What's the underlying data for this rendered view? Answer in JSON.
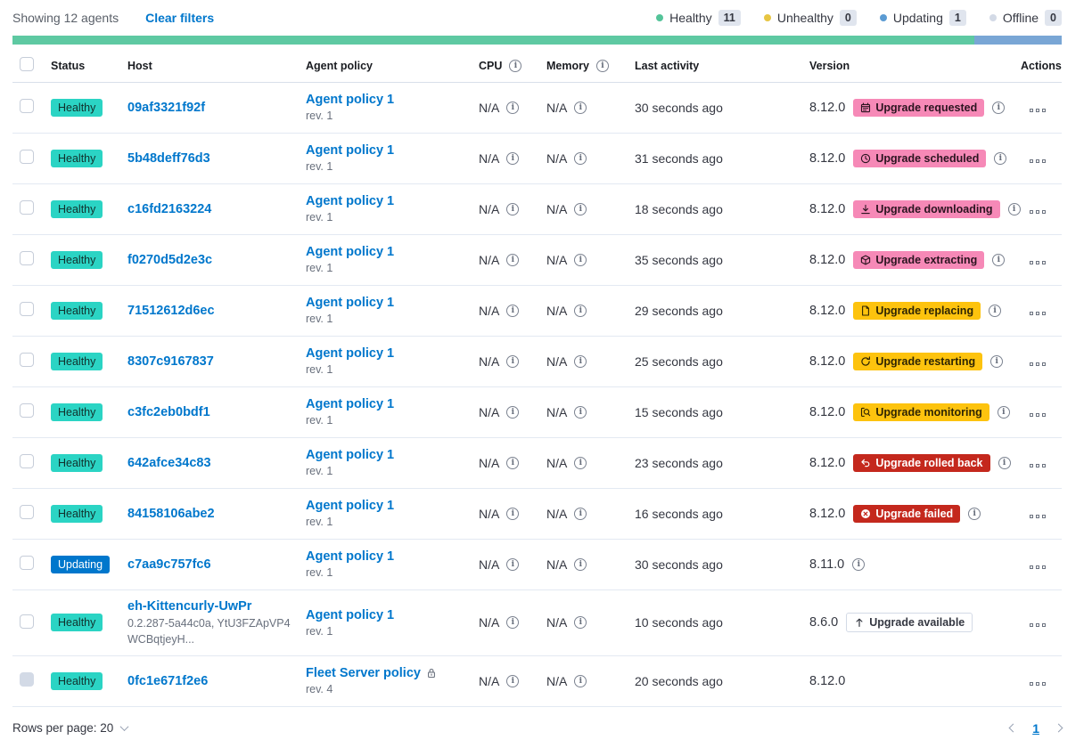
{
  "toolbar": {
    "showing_text": "Showing 12 agents",
    "clear_filters_label": "Clear filters",
    "legend": [
      {
        "label": "Healthy",
        "count": "11",
        "color": "#54C499"
      },
      {
        "label": "Unhealthy",
        "count": "0",
        "color": "#E7C542"
      },
      {
        "label": "Updating",
        "count": "1",
        "color": "#5B9BD3"
      },
      {
        "label": "Offline",
        "count": "0",
        "color": "#D3DAE6"
      }
    ]
  },
  "health_bar": {
    "segments": [
      {
        "status": "healthy",
        "color": "#5EC9A2",
        "fraction": 0.917
      },
      {
        "status": "updating",
        "color": "#79A6D5",
        "fraction": 0.083
      }
    ]
  },
  "table": {
    "headers": {
      "status": "Status",
      "host": "Host",
      "policy": "Agent policy",
      "cpu": "CPU",
      "memory": "Memory",
      "last_activity": "Last activity",
      "version": "Version",
      "actions": "Actions"
    },
    "rows": [
      {
        "status": "Healthy",
        "host": "09af3321f92f",
        "host_sub": "",
        "policy": "Agent policy 1",
        "policy_rev": "rev. 1",
        "policy_locked": false,
        "cpu": "N/A",
        "memory": "N/A",
        "last_activity": "30 seconds ago",
        "version": "8.12.0",
        "upgrade_badge": {
          "label": "Upgrade requested",
          "style": "accent",
          "icon": "calendar-icon"
        },
        "version_info": true,
        "checkbox_disabled": false
      },
      {
        "status": "Healthy",
        "host": "5b48deff76d3",
        "host_sub": "",
        "policy": "Agent policy 1",
        "policy_rev": "rev. 1",
        "policy_locked": false,
        "cpu": "N/A",
        "memory": "N/A",
        "last_activity": "31 seconds ago",
        "version": "8.12.0",
        "upgrade_badge": {
          "label": "Upgrade scheduled",
          "style": "accent",
          "icon": "clock-icon"
        },
        "version_info": true,
        "checkbox_disabled": false
      },
      {
        "status": "Healthy",
        "host": "c16fd2163224",
        "host_sub": "",
        "policy": "Agent policy 1",
        "policy_rev": "rev. 1",
        "policy_locked": false,
        "cpu": "N/A",
        "memory": "N/A",
        "last_activity": "18 seconds ago",
        "version": "8.12.0",
        "upgrade_badge": {
          "label": "Upgrade downloading",
          "style": "accent",
          "icon": "download-icon"
        },
        "version_info": true,
        "checkbox_disabled": false
      },
      {
        "status": "Healthy",
        "host": "f0270d5d2e3c",
        "host_sub": "",
        "policy": "Agent policy 1",
        "policy_rev": "rev. 1",
        "policy_locked": false,
        "cpu": "N/A",
        "memory": "N/A",
        "last_activity": "35 seconds ago",
        "version": "8.12.0",
        "upgrade_badge": {
          "label": "Upgrade extracting",
          "style": "accent",
          "icon": "package-icon"
        },
        "version_info": true,
        "checkbox_disabled": false
      },
      {
        "status": "Healthy",
        "host": "71512612d6ec",
        "host_sub": "",
        "policy": "Agent policy 1",
        "policy_rev": "rev. 1",
        "policy_locked": false,
        "cpu": "N/A",
        "memory": "N/A",
        "last_activity": "29 seconds ago",
        "version": "8.12.0",
        "upgrade_badge": {
          "label": "Upgrade replacing",
          "style": "warning",
          "icon": "document-icon"
        },
        "version_info": true,
        "checkbox_disabled": false
      },
      {
        "status": "Healthy",
        "host": "8307c9167837",
        "host_sub": "",
        "policy": "Agent policy 1",
        "policy_rev": "rev. 1",
        "policy_locked": false,
        "cpu": "N/A",
        "memory": "N/A",
        "last_activity": "25 seconds ago",
        "version": "8.12.0",
        "upgrade_badge": {
          "label": "Upgrade restarting",
          "style": "warning",
          "icon": "refresh-icon"
        },
        "version_info": true,
        "checkbox_disabled": false
      },
      {
        "status": "Healthy",
        "host": "c3fc2eb0bdf1",
        "host_sub": "",
        "policy": "Agent policy 1",
        "policy_rev": "rev. 1",
        "policy_locked": false,
        "cpu": "N/A",
        "memory": "N/A",
        "last_activity": "15 seconds ago",
        "version": "8.12.0",
        "upgrade_badge": {
          "label": "Upgrade monitoring",
          "style": "warning",
          "icon": "inspect-icon"
        },
        "version_info": true,
        "checkbox_disabled": false
      },
      {
        "status": "Healthy",
        "host": "642afce34c83",
        "host_sub": "",
        "policy": "Agent policy 1",
        "policy_rev": "rev. 1",
        "policy_locked": false,
        "cpu": "N/A",
        "memory": "N/A",
        "last_activity": "23 seconds ago",
        "version": "8.12.0",
        "upgrade_badge": {
          "label": "Upgrade rolled back",
          "style": "danger",
          "icon": "return-icon"
        },
        "version_info": true,
        "checkbox_disabled": false
      },
      {
        "status": "Healthy",
        "host": "84158106abe2",
        "host_sub": "",
        "policy": "Agent policy 1",
        "policy_rev": "rev. 1",
        "policy_locked": false,
        "cpu": "N/A",
        "memory": "N/A",
        "last_activity": "16 seconds ago",
        "version": "8.12.0",
        "upgrade_badge": {
          "label": "Upgrade failed",
          "style": "danger",
          "icon": "error-icon"
        },
        "version_info": true,
        "checkbox_disabled": false
      },
      {
        "status": "Updating",
        "host": "c7aa9c757fc6",
        "host_sub": "",
        "policy": "Agent policy 1",
        "policy_rev": "rev. 1",
        "policy_locked": false,
        "cpu": "N/A",
        "memory": "N/A",
        "last_activity": "30 seconds ago",
        "version": "8.11.0",
        "upgrade_badge": null,
        "version_info": true,
        "checkbox_disabled": false
      },
      {
        "status": "Healthy",
        "host": "eh-Kittencurly-UwPr",
        "host_sub": "0.2.287-5a44c0a, YtU3FZApVP4WCBqtjeyH...",
        "policy": "Agent policy 1",
        "policy_rev": "rev. 1",
        "policy_locked": false,
        "cpu": "N/A",
        "memory": "N/A",
        "last_activity": "10 seconds ago",
        "version": "8.6.0",
        "upgrade_badge": {
          "label": "Upgrade available",
          "style": "hollow",
          "icon": "sort-up-icon"
        },
        "version_info": false,
        "checkbox_disabled": false
      },
      {
        "status": "Healthy",
        "host": "0fc1e671f2e6",
        "host_sub": "",
        "policy": "Fleet Server policy",
        "policy_rev": "rev. 4",
        "policy_locked": true,
        "cpu": "N/A",
        "memory": "N/A",
        "last_activity": "20 seconds ago",
        "version": "8.12.0",
        "upgrade_badge": null,
        "version_info": false,
        "checkbox_disabled": true
      }
    ]
  },
  "footer": {
    "rows_per_page_label": "Rows per page: 20",
    "current_page": "1"
  }
}
